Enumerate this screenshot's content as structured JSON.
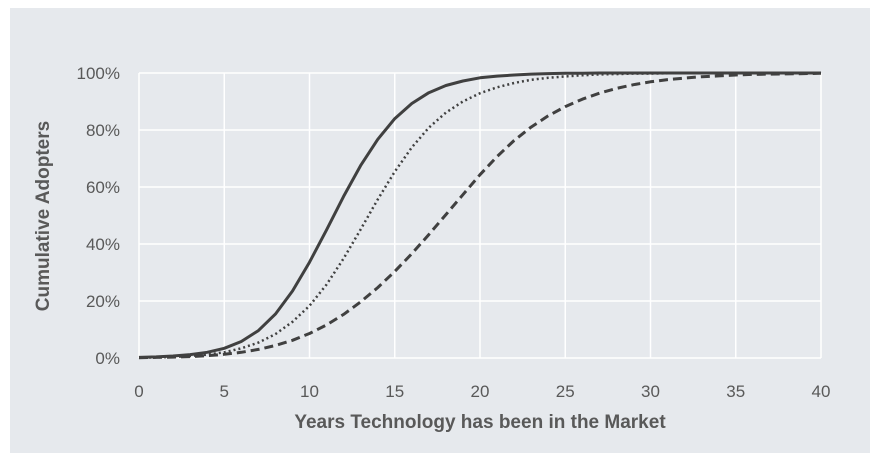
{
  "chart_data": {
    "type": "line",
    "title": "",
    "xlabel": "Years Technology has been in the Market",
    "ylabel": "Cumulative Adopters",
    "xlim": [
      0,
      40
    ],
    "ylim": [
      0,
      100
    ],
    "x_ticks": [
      "0",
      "5",
      "10",
      "15",
      "20",
      "25",
      "30",
      "35",
      "40"
    ],
    "y_ticks": [
      "0%",
      "20%",
      "40%",
      "60%",
      "80%",
      "100%"
    ],
    "grid": true,
    "legend": "none",
    "x": [
      0,
      1,
      2,
      3,
      4,
      5,
      6,
      7,
      8,
      9,
      10,
      11,
      12,
      13,
      14,
      15,
      16,
      17,
      18,
      19,
      20,
      21,
      22,
      23,
      24,
      25,
      26,
      27,
      28,
      29,
      30,
      31,
      32,
      33,
      34,
      35,
      36,
      37,
      38,
      39,
      40
    ],
    "series": [
      {
        "style": "solid",
        "color": "#404040",
        "values": [
          0.2,
          0.4,
          0.7,
          1.2,
          2.0,
          3.4,
          5.8,
          9.6,
          15.4,
          23.5,
          33.6,
          45.0,
          56.7,
          67.5,
          76.7,
          84.0,
          89.3,
          93.1,
          95.6,
          97.2,
          98.3,
          98.9,
          99.3,
          99.6,
          99.8,
          99.9,
          99.9,
          100,
          100,
          100,
          100,
          100,
          100,
          100,
          100,
          100,
          100,
          100,
          100,
          100,
          100
        ]
      },
      {
        "style": "dotted",
        "color": "#404040",
        "values": [
          0.1,
          0.2,
          0.4,
          0.7,
          1.2,
          2.0,
          3.4,
          5.4,
          8.4,
          12.7,
          18.3,
          25.8,
          34.9,
          45.1,
          55.6,
          65.4,
          73.9,
          80.8,
          86.1,
          90.0,
          92.9,
          95.0,
          96.5,
          97.6,
          98.3,
          98.8,
          99.2,
          99.5,
          99.6,
          99.8,
          99.8,
          99.9,
          99.9,
          100,
          100,
          100,
          100,
          100,
          100,
          100,
          100
        ]
      },
      {
        "style": "dashed",
        "color": "#404040",
        "values": [
          0.1,
          0.2,
          0.3,
          0.5,
          0.8,
          1.3,
          2.0,
          3.0,
          4.4,
          6.2,
          8.6,
          11.6,
          15.3,
          19.7,
          24.7,
          30.4,
          36.6,
          43.3,
          50.3,
          57.3,
          64.3,
          70.7,
          76.3,
          81.0,
          85.0,
          88.2,
          90.8,
          92.9,
          94.6,
          95.9,
          96.9,
          97.7,
          98.2,
          98.7,
          99.0,
          99.3,
          99.5,
          99.6,
          99.7,
          99.8,
          99.9
        ]
      }
    ]
  }
}
